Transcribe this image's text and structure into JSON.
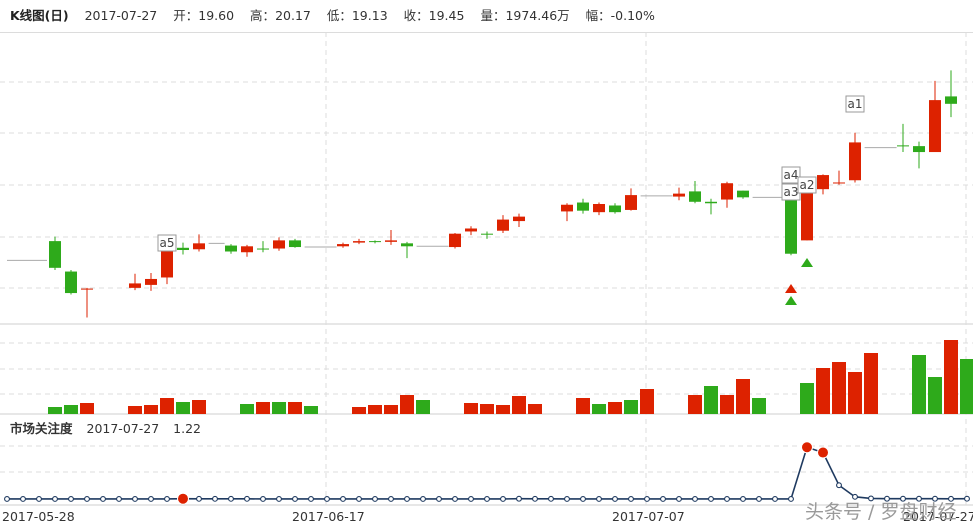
{
  "header": {
    "title": "K线图(日)",
    "date": "2017-07-27",
    "open_label": "开：",
    "open": "19.60",
    "high_label": "高：",
    "high": "20.17",
    "low_label": "低：",
    "low": "19.13",
    "close_label": "收：",
    "close": "19.45",
    "volume_label": "量：",
    "volume": "1974.46万",
    "change_label": "幅：",
    "change": "-0.10%"
  },
  "attention_panel": {
    "title": "市场关注度",
    "date": "2017-07-27",
    "value": "1.22"
  },
  "x_ticks": [
    "2017-05-28",
    "2017-06-17",
    "2017-07-07",
    "2017-07-27"
  ],
  "watermark": "头条号 / 罗盘财经",
  "colors": {
    "up": "#dd2200",
    "down": "#2eaa1b",
    "attention_line": "#1f3a60",
    "attention_marker": "#dd2200",
    "grid": "#dcdcdc"
  },
  "chart_data": [
    {
      "type": "candlestick",
      "title": "K线图(日)",
      "up_color": "#dd2200",
      "down_color": "#2eaa1b",
      "candles": [
        {
          "i": 0,
          "o": null,
          "c": null,
          "h": null,
          "l": null
        },
        {
          "i": 1,
          "o": null,
          "c": null,
          "h": null,
          "l": null
        },
        {
          "i": 3,
          "o": 17.19,
          "c": 16.83,
          "h": 17.25,
          "l": 16.8
        },
        {
          "i": 4,
          "o": 16.78,
          "c": 16.49,
          "h": 16.8,
          "l": 16.47
        },
        {
          "i": 5,
          "o": 16.54,
          "c": 16.55,
          "h": 16.56,
          "l": 16.16
        },
        {
          "i": 6,
          "o": null,
          "c": null,
          "h": null,
          "l": null
        },
        {
          "i": 8,
          "o": 16.56,
          "c": 16.62,
          "h": 16.75,
          "l": 16.53
        },
        {
          "i": 9,
          "o": 16.6,
          "c": 16.68,
          "h": 16.76,
          "l": 16.52
        },
        {
          "i": 10,
          "o": 16.7,
          "c": 17.12,
          "h": 17.23,
          "l": 16.61
        },
        {
          "i": 11,
          "o": 17.1,
          "c": 17.07,
          "h": 17.17,
          "l": 17.01
        },
        {
          "i": 12,
          "o": 17.08,
          "c": 17.16,
          "h": 17.28,
          "l": 17.05
        },
        {
          "i": 14,
          "o": 17.13,
          "c": 17.05,
          "h": 17.15,
          "l": 17.02
        },
        {
          "i": 15,
          "o": 17.04,
          "c": 17.12,
          "h": 17.14,
          "l": 16.98
        },
        {
          "i": 16,
          "o": 17.09,
          "c": 17.08,
          "h": 17.19,
          "l": 17.04
        },
        {
          "i": 17,
          "o": 17.09,
          "c": 17.2,
          "h": 17.24,
          "l": 17.06
        },
        {
          "i": 18,
          "o": 17.2,
          "c": 17.11,
          "h": 17.22,
          "l": 17.1
        },
        {
          "i": 21,
          "o": 17.12,
          "c": 17.15,
          "h": 17.17,
          "l": 17.1
        },
        {
          "i": 22,
          "o": 17.17,
          "c": 17.19,
          "h": 17.22,
          "l": 17.15
        },
        {
          "i": 23,
          "o": 17.19,
          "c": 17.18,
          "h": 17.2,
          "l": 17.16
        },
        {
          "i": 24,
          "o": 17.18,
          "c": 17.2,
          "h": 17.34,
          "l": 17.14
        },
        {
          "i": 25,
          "o": 17.16,
          "c": 17.12,
          "h": 17.18,
          "l": 16.96
        },
        {
          "i": 28,
          "o": 17.11,
          "c": 17.29,
          "h": 17.3,
          "l": 17.09
        },
        {
          "i": 29,
          "o": 17.32,
          "c": 17.36,
          "h": 17.39,
          "l": 17.27
        },
        {
          "i": 30,
          "o": 17.29,
          "c": 17.28,
          "h": 17.32,
          "l": 17.22
        },
        {
          "i": 31,
          "o": 17.33,
          "c": 17.48,
          "h": 17.54,
          "l": 17.3
        },
        {
          "i": 32,
          "o": 17.46,
          "c": 17.52,
          "h": 17.56,
          "l": 17.38
        },
        {
          "i": 35,
          "o": 17.59,
          "c": 17.68,
          "h": 17.7,
          "l": 17.46
        },
        {
          "i": 36,
          "o": 17.71,
          "c": 17.6,
          "h": 17.76,
          "l": 17.56
        },
        {
          "i": 37,
          "o": 17.58,
          "c": 17.69,
          "h": 17.71,
          "l": 17.54
        },
        {
          "i": 38,
          "o": 17.67,
          "c": 17.58,
          "h": 17.7,
          "l": 17.56
        },
        {
          "i": 39,
          "o": 17.61,
          "c": 17.81,
          "h": 17.9,
          "l": 17.6
        },
        {
          "i": 42,
          "o": 17.79,
          "c": 17.83,
          "h": 17.91,
          "l": 17.74
        },
        {
          "i": 43,
          "o": 17.86,
          "c": 17.72,
          "h": 18.0,
          "l": 17.7
        },
        {
          "i": 44,
          "o": 17.72,
          "c": 17.7,
          "h": 17.76,
          "l": 17.55
        },
        {
          "i": 45,
          "o": 17.75,
          "c": 17.97,
          "h": 17.99,
          "l": 17.64
        },
        {
          "i": 46,
          "o": 17.87,
          "c": 17.78,
          "h": 17.87,
          "l": 17.76
        },
        {
          "i": 49,
          "o": 17.76,
          "c": 17.02,
          "h": 17.8,
          "l": 17.0
        },
        {
          "i": 50,
          "o": 17.2,
          "c": 17.86,
          "h": 17.86,
          "l": 17.2
        },
        {
          "i": 51,
          "o": 17.89,
          "c": 18.08,
          "h": 18.09,
          "l": 17.82
        },
        {
          "i": 52,
          "o": 17.98,
          "c": 17.98,
          "h": 18.14,
          "l": 17.95
        },
        {
          "i": 53,
          "o": 18.01,
          "c": 18.52,
          "h": 18.65,
          "l": 17.98
        },
        {
          "i": 56,
          "o": 18.48,
          "c": 18.47,
          "h": 18.77,
          "l": 18.39
        },
        {
          "i": 57,
          "o": 18.47,
          "c": 18.39,
          "h": 18.53,
          "l": 18.17
        },
        {
          "i": 58,
          "o": 18.39,
          "c": 19.09,
          "h": 19.35,
          "l": 18.4
        },
        {
          "i": 59,
          "o": 19.14,
          "c": 19.04,
          "h": 19.49,
          "l": 18.86
        }
      ],
      "volume": {
        "values": [
          {
            "i": 3,
            "v": 7,
            "up": false
          },
          {
            "i": 4,
            "v": 9,
            "up": false
          },
          {
            "i": 5,
            "v": 11,
            "up": true
          },
          {
            "i": 8,
            "v": 8,
            "up": true
          },
          {
            "i": 9,
            "v": 9,
            "up": true
          },
          {
            "i": 10,
            "v": 16,
            "up": true
          },
          {
            "i": 11,
            "v": 12,
            "up": false
          },
          {
            "i": 12,
            "v": 14,
            "up": true
          },
          {
            "i": 15,
            "v": 10,
            "up": false
          },
          {
            "i": 16,
            "v": 12,
            "up": true
          },
          {
            "i": 17,
            "v": 12,
            "up": false
          },
          {
            "i": 18,
            "v": 12,
            "up": true
          },
          {
            "i": 19,
            "v": 8,
            "up": false
          },
          {
            "i": 22,
            "v": 7,
            "up": true
          },
          {
            "i": 23,
            "v": 9,
            "up": true
          },
          {
            "i": 24,
            "v": 9,
            "up": true
          },
          {
            "i": 25,
            "v": 19,
            "up": true
          },
          {
            "i": 26,
            "v": 14,
            "up": false
          },
          {
            "i": 29,
            "v": 11,
            "up": true
          },
          {
            "i": 30,
            "v": 10,
            "up": true
          },
          {
            "i": 31,
            "v": 9,
            "up": true
          },
          {
            "i": 32,
            "v": 18,
            "up": true
          },
          {
            "i": 33,
            "v": 10,
            "up": true
          },
          {
            "i": 36,
            "v": 16,
            "up": true
          },
          {
            "i": 37,
            "v": 10,
            "up": false
          },
          {
            "i": 38,
            "v": 12,
            "up": true
          },
          {
            "i": 39,
            "v": 14,
            "up": false
          },
          {
            "i": 40,
            "v": 25,
            "up": true
          },
          {
            "i": 43,
            "v": 19,
            "up": true
          },
          {
            "i": 44,
            "v": 28,
            "up": false
          },
          {
            "i": 45,
            "v": 19,
            "up": true
          },
          {
            "i": 46,
            "v": 35,
            "up": true
          },
          {
            "i": 47,
            "v": 16,
            "up": false
          },
          {
            "i": 50,
            "v": 31,
            "up": false
          },
          {
            "i": 51,
            "v": 46,
            "up": true
          },
          {
            "i": 52,
            "v": 52,
            "up": true
          },
          {
            "i": 53,
            "v": 42,
            "up": true
          },
          {
            "i": 54,
            "v": 61,
            "up": true
          },
          {
            "i": 57,
            "v": 59,
            "up": false
          },
          {
            "i": 58,
            "v": 37,
            "up": false
          },
          {
            "i": 59,
            "v": 74,
            "up": true
          },
          {
            "i": 60,
            "v": 55,
            "up": false
          }
        ]
      },
      "annotations": [
        {
          "label": "a5",
          "i": 10
        },
        {
          "label": "a4",
          "i": 49
        },
        {
          "label": "a3",
          "i": 49
        },
        {
          "label": "a2",
          "i": 50
        },
        {
          "label": "a1",
          "i": 53
        }
      ],
      "signals": [
        {
          "i": 49,
          "kind": "up-red"
        },
        {
          "i": 49,
          "kind": "up-green"
        },
        {
          "i": 50,
          "kind": "up-green"
        }
      ]
    },
    {
      "type": "line",
      "title": "市场关注度",
      "values": [
        1,
        1,
        1,
        1,
        1,
        1,
        1,
        1,
        1,
        1,
        1,
        1.22,
        1.1,
        1.1,
        1.1,
        1.1,
        1,
        1,
        1,
        1,
        1,
        1,
        1,
        1,
        1,
        1,
        1,
        1,
        1,
        1,
        1,
        1,
        1.2,
        1.1,
        1.1,
        1,
        1,
        1,
        1,
        1,
        1,
        1,
        1,
        1,
        1,
        1,
        1,
        1,
        1,
        1,
        50,
        45,
        14,
        3,
        1.5,
        1.2,
        1.2,
        1.2,
        1.2,
        1.1,
        1.22
      ],
      "highlight": [
        11,
        50,
        51
      ]
    }
  ]
}
